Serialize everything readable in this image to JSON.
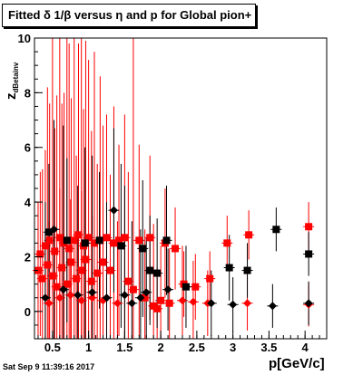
{
  "header": {
    "title_prefix": "Fitted δ 1/β versus η and p for Global pion+"
  },
  "footer": {
    "timestamp": "Sat Sep  9 11:39:16 2017"
  },
  "axes": {
    "xlabel": "p[GeV/c]",
    "ylabel_main": "z",
    "ylabel_sub": "dBetainv"
  },
  "chart_data": {
    "type": "scatter",
    "xlim": [
      0.25,
      4.3
    ],
    "ylim": [
      -1,
      10
    ],
    "x_ticks": [
      0.5,
      1,
      1.5,
      2,
      2.5,
      3,
      3.5,
      4
    ],
    "x_tick_labels": [
      "0.5",
      "1",
      "1.5",
      "2",
      "2.5",
      "3",
      "3.5",
      "4"
    ],
    "y_ticks": [
      0,
      2,
      4,
      6,
      8,
      10
    ],
    "y_tick_labels": [
      "0",
      "2",
      "4",
      "6",
      "8",
      "10"
    ],
    "colors": {
      "red": "#ff0000",
      "black": "#000000",
      "frame": "#000000"
    },
    "series": [
      {
        "color": "red",
        "marker": "square",
        "points": [
          [
            0.3,
            1.5,
            2.5
          ],
          [
            0.33,
            2.1,
            3.0
          ],
          [
            0.36,
            1.2,
            4.0
          ],
          [
            0.4,
            2.4,
            3.5
          ],
          [
            0.43,
            1.7,
            6.5
          ],
          [
            0.46,
            2.6,
            5.0
          ],
          [
            0.5,
            1.3,
            9.0
          ],
          [
            0.53,
            2.2,
            4.5
          ],
          [
            0.56,
            0.9,
            7.0
          ],
          [
            0.6,
            2.7,
            8.0
          ],
          [
            0.63,
            1.6,
            6.0
          ],
          [
            0.66,
            2.5,
            5.5
          ],
          [
            0.7,
            1.0,
            10.0
          ],
          [
            0.73,
            2.3,
            7.5
          ],
          [
            0.76,
            1.8,
            6.0
          ],
          [
            0.8,
            2.6,
            10.0
          ],
          [
            0.83,
            1.2,
            4.5
          ],
          [
            0.86,
            2.8,
            7.0
          ],
          [
            0.9,
            1.5,
            9.0
          ],
          [
            0.93,
            2.4,
            5.0
          ],
          [
            0.96,
            1.9,
            8.0
          ],
          [
            1.0,
            2.7,
            6.5
          ],
          [
            1.04,
            1.1,
            5.5
          ],
          [
            1.08,
            2.5,
            7.0
          ],
          [
            1.12,
            1.4,
            4.0
          ],
          [
            1.16,
            2.6,
            6.0
          ],
          [
            1.2,
            1.8,
            5.0
          ],
          [
            1.25,
            2.7,
            4.5
          ],
          [
            1.3,
            1.5,
            3.5
          ],
          [
            1.35,
            2.5,
            5.0
          ],
          [
            1.42,
            2.6,
            3.5
          ],
          [
            1.5,
            2.7,
            4.5
          ],
          [
            1.55,
            1.1,
            4.0
          ],
          [
            1.62,
            0.8,
            10.0
          ],
          [
            1.7,
            2.6,
            3.5
          ],
          [
            1.78,
            0.5,
            2.5
          ],
          [
            1.85,
            2.7,
            3.0
          ],
          [
            1.9,
            0.2,
            3.0
          ],
          [
            1.95,
            0.1,
            1.5
          ],
          [
            2.0,
            0.4,
            2.0
          ],
          [
            2.06,
            2.5,
            2.0
          ],
          [
            2.12,
            0.3,
            2.0
          ],
          [
            2.2,
            2.3,
            1.5
          ],
          [
            2.32,
            1.0,
            1.2
          ],
          [
            2.48,
            0.9,
            1.2
          ],
          [
            2.68,
            1.2,
            1.0
          ],
          [
            2.92,
            2.5,
            1.0
          ],
          [
            3.22,
            2.8,
            0.9
          ],
          [
            4.05,
            3.1,
            0.9
          ]
        ]
      },
      {
        "color": "red",
        "marker": "diamond",
        "points": [
          [
            0.45,
            0.3,
            3.0
          ],
          [
            0.6,
            0.5,
            4.0
          ],
          [
            0.75,
            0.6,
            3.5
          ],
          [
            0.9,
            0.4,
            4.0
          ],
          [
            1.05,
            0.5,
            3.0
          ],
          [
            1.2,
            0.4,
            3.5
          ],
          [
            1.4,
            0.3,
            3.0
          ],
          [
            2.3,
            0.4,
            2.0
          ],
          [
            2.45,
            0.35,
            1.5
          ],
          [
            2.65,
            0.3,
            1.2
          ],
          [
            3.2,
            0.3,
            1.0
          ],
          [
            4.05,
            0.25,
            0.8
          ]
        ]
      },
      {
        "color": "black",
        "marker": "square",
        "points": [
          [
            0.45,
            2.9,
            2.5
          ],
          [
            0.7,
            2.6,
            3.0
          ],
          [
            0.95,
            2.5,
            3.5
          ],
          [
            1.15,
            2.6,
            2.5
          ],
          [
            1.45,
            2.4,
            3.0
          ],
          [
            1.75,
            2.3,
            2.5
          ],
          [
            1.85,
            1.5,
            2.0
          ],
          [
            1.95,
            1.4,
            2.0
          ],
          [
            2.08,
            2.6,
            2.0
          ],
          [
            2.35,
            0.9,
            1.5
          ],
          [
            2.95,
            1.6,
            1.2
          ],
          [
            3.2,
            1.5,
            1.0
          ],
          [
            3.6,
            3.0,
            0.8
          ],
          [
            4.05,
            2.1,
            0.8
          ]
        ]
      },
      {
        "color": "black",
        "marker": "diamond",
        "points": [
          [
            0.4,
            0.5,
            3.5
          ],
          [
            0.52,
            3.0,
            4.0
          ],
          [
            0.65,
            0.8,
            6.0
          ],
          [
            0.85,
            0.6,
            4.0
          ],
          [
            1.05,
            0.7,
            5.0
          ],
          [
            1.25,
            0.5,
            3.5
          ],
          [
            1.35,
            3.7,
            3.0
          ],
          [
            1.5,
            0.6,
            4.0
          ],
          [
            1.6,
            0.3,
            3.0
          ],
          [
            1.72,
            0.5,
            2.5
          ],
          [
            1.8,
            0.7,
            2.0
          ],
          [
            2.1,
            0.8,
            1.5
          ],
          [
            2.7,
            0.3,
            1.2
          ],
          [
            3.0,
            0.25,
            1.0
          ],
          [
            3.55,
            0.2,
            0.8
          ],
          [
            4.05,
            0.3,
            0.8
          ]
        ]
      }
    ]
  }
}
